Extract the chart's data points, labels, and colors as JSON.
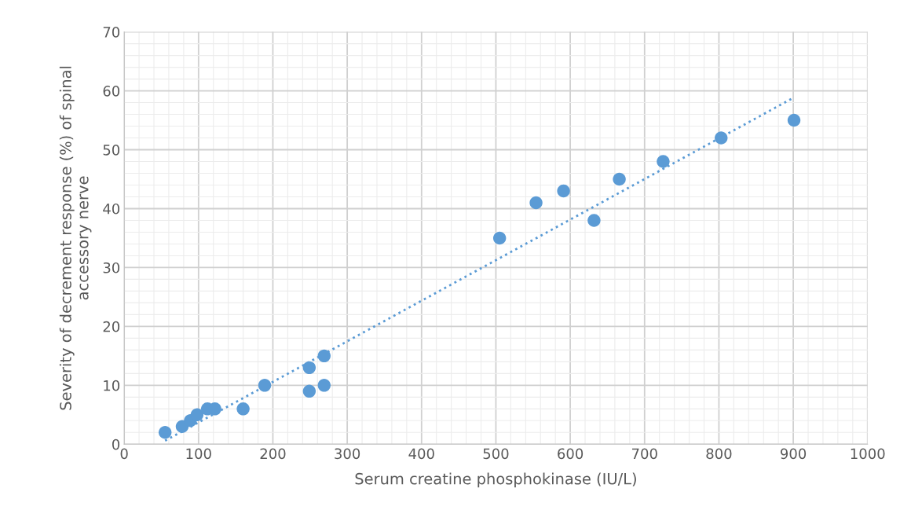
{
  "chart_data": {
    "type": "scatter",
    "xlabel": "Serum creatine phosphokinase (IU/L)",
    "ylabel": "Severity of decrement response (%) of spinal\naccessory nerve",
    "xlim": [
      0,
      1000
    ],
    "xticks": [
      0,
      100,
      200,
      300,
      400,
      500,
      600,
      700,
      800,
      900,
      1000
    ],
    "ylim": [
      0,
      70
    ],
    "yticks": [
      0,
      10,
      20,
      30,
      40,
      50,
      60,
      70
    ],
    "grid": true,
    "legend": false,
    "marker": "circle",
    "series": [
      {
        "color": "#5b9bd5",
        "x": [
          55,
          78,
          89,
          98,
          112,
          122,
          160,
          189,
          249,
          249,
          269,
          269,
          505,
          554,
          591,
          632,
          666,
          725,
          803,
          901
        ],
        "values": [
          2,
          3,
          4,
          5,
          6,
          6,
          6,
          10,
          13,
          9,
          15,
          10,
          35,
          41,
          43,
          38,
          45,
          48,
          52,
          55
        ]
      },
      {
        "type": "line",
        "color": "#5b9bd5",
        "line_style": "dotted",
        "marker": "none",
        "x": [
          55,
          900
        ],
        "values": [
          0.6,
          58.8
        ]
      }
    ]
  }
}
